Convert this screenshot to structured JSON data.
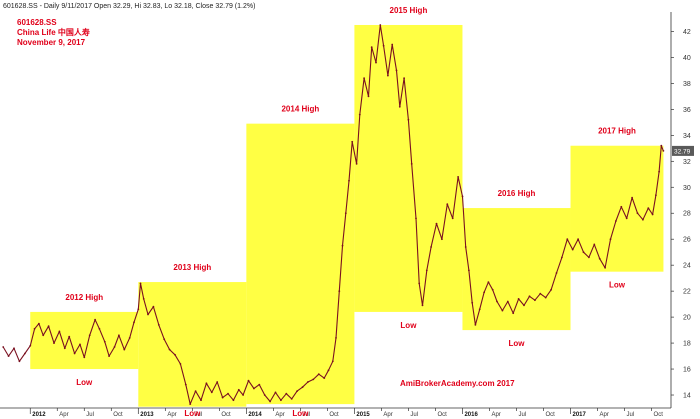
{
  "header": {
    "info_line": "601628.SS - Daily 9/11/2017 Open 32.29, Hi 32.83, Lo 32.18, Close 32.79 (1.2%)",
    "ticker": "601628.SS",
    "company": "China Life 中国人寿",
    "date": "November 9, 2017"
  },
  "watermark": "AmiBrokerAcademy.com 2017",
  "last_price_label": "32.79",
  "colors": {
    "box": "#ffff44",
    "price": "#7a1020",
    "label": "#e0001a",
    "last_price_bg": "#5a5a5a"
  },
  "chart_data": {
    "type": "line",
    "title": "",
    "xlabel": "",
    "ylabel": "",
    "x_unit": "year (decimal)",
    "xlim": [
      2011.72,
      2017.93
    ],
    "ylim": [
      13,
      43.5
    ],
    "y_axis_side": "right",
    "y_ticks": [
      14,
      16,
      18,
      20,
      22,
      24,
      26,
      28,
      30,
      32,
      34,
      36,
      38,
      40,
      42
    ],
    "x_ticks": [
      {
        "x": 2012.0,
        "label": "2012",
        "major": true
      },
      {
        "x": 2012.25,
        "label": "Apr",
        "major": false
      },
      {
        "x": 2012.5,
        "label": "Jul",
        "major": false
      },
      {
        "x": 2012.75,
        "label": "Oct",
        "major": false
      },
      {
        "x": 2013.0,
        "label": "2013",
        "major": true
      },
      {
        "x": 2013.25,
        "label": "Apr",
        "major": false
      },
      {
        "x": 2013.5,
        "label": "Jul",
        "major": false
      },
      {
        "x": 2013.75,
        "label": "Oct",
        "major": false
      },
      {
        "x": 2014.0,
        "label": "2014",
        "major": true
      },
      {
        "x": 2014.25,
        "label": "Apr",
        "major": false
      },
      {
        "x": 2014.5,
        "label": "Jul",
        "major": false
      },
      {
        "x": 2014.75,
        "label": "Oct",
        "major": false
      },
      {
        "x": 2015.0,
        "label": "2015",
        "major": true
      },
      {
        "x": 2015.25,
        "label": "Apr",
        "major": false
      },
      {
        "x": 2015.5,
        "label": "Jul",
        "major": false
      },
      {
        "x": 2015.75,
        "label": "Oct",
        "major": false
      },
      {
        "x": 2016.0,
        "label": "2016",
        "major": true
      },
      {
        "x": 2016.25,
        "label": "Apr",
        "major": false
      },
      {
        "x": 2016.5,
        "label": "Jul",
        "major": false
      },
      {
        "x": 2016.75,
        "label": "Oct",
        "major": false
      },
      {
        "x": 2017.0,
        "label": "2017",
        "major": true
      },
      {
        "x": 2017.25,
        "label": "Apr",
        "major": false
      },
      {
        "x": 2017.5,
        "label": "Jul",
        "major": false
      },
      {
        "x": 2017.75,
        "label": "Oct",
        "major": false
      }
    ],
    "grid": false,
    "boxes": [
      {
        "year": "2012",
        "x0": 2012.0,
        "x1": 2013.0,
        "low": 16.0,
        "high": 20.4,
        "high_label": "2012 High",
        "low_label": "Low"
      },
      {
        "year": "2013",
        "x0": 2013.0,
        "x1": 2014.0,
        "low": 13.1,
        "high": 22.7,
        "high_label": "2013 High",
        "low_label": "Low"
      },
      {
        "year": "2014",
        "x0": 2014.0,
        "x1": 2015.0,
        "low": 13.3,
        "high": 34.9,
        "high_label": "2014 High",
        "low_label": "Low"
      },
      {
        "year": "2015",
        "x0": 2015.0,
        "x1": 2016.0,
        "low": 20.4,
        "high": 42.5,
        "high_label": "2015 High",
        "low_label": "Low"
      },
      {
        "year": "2016",
        "x0": 2016.0,
        "x1": 2017.0,
        "low": 19.0,
        "high": 28.4,
        "high_label": "2016 High",
        "low_label": "Low"
      },
      {
        "year": "2017",
        "x0": 2017.0,
        "x1": 2017.86,
        "low": 23.5,
        "high": 33.2,
        "high_label": "2017 High",
        "low_label": "Low"
      }
    ],
    "series": [
      {
        "values": [
          [
            2011.75,
            17.7
          ],
          [
            2011.8,
            17.0
          ],
          [
            2011.85,
            17.6
          ],
          [
            2011.9,
            16.6
          ],
          [
            2011.95,
            17.2
          ],
          [
            2012.0,
            17.8
          ],
          [
            2012.04,
            19.1
          ],
          [
            2012.08,
            19.5
          ],
          [
            2012.12,
            18.6
          ],
          [
            2012.17,
            19.3
          ],
          [
            2012.22,
            18.0
          ],
          [
            2012.27,
            18.9
          ],
          [
            2012.32,
            17.6
          ],
          [
            2012.36,
            18.5
          ],
          [
            2012.41,
            17.2
          ],
          [
            2012.46,
            17.9
          ],
          [
            2012.5,
            16.9
          ],
          [
            2012.55,
            18.6
          ],
          [
            2012.6,
            19.8
          ],
          [
            2012.64,
            19.1
          ],
          [
            2012.69,
            18.1
          ],
          [
            2012.73,
            17.0
          ],
          [
            2012.78,
            17.7
          ],
          [
            2012.82,
            18.6
          ],
          [
            2012.87,
            17.5
          ],
          [
            2012.92,
            18.4
          ],
          [
            2012.96,
            19.6
          ],
          [
            2013.0,
            20.6
          ],
          [
            2013.02,
            22.6
          ],
          [
            2013.05,
            21.4
          ],
          [
            2013.09,
            20.2
          ],
          [
            2013.14,
            20.8
          ],
          [
            2013.19,
            19.4
          ],
          [
            2013.24,
            18.3
          ],
          [
            2013.29,
            17.5
          ],
          [
            2013.34,
            17.1
          ],
          [
            2013.39,
            16.4
          ],
          [
            2013.44,
            14.8
          ],
          [
            2013.48,
            13.3
          ],
          [
            2013.53,
            14.3
          ],
          [
            2013.58,
            13.6
          ],
          [
            2013.63,
            14.9
          ],
          [
            2013.68,
            14.2
          ],
          [
            2013.73,
            15.0
          ],
          [
            2013.78,
            13.8
          ],
          [
            2013.83,
            14.1
          ],
          [
            2013.88,
            13.6
          ],
          [
            2013.93,
            14.4
          ],
          [
            2013.97,
            14.0
          ],
          [
            2014.02,
            15.1
          ],
          [
            2014.07,
            14.5
          ],
          [
            2014.12,
            14.8
          ],
          [
            2014.17,
            14.0
          ],
          [
            2014.22,
            13.5
          ],
          [
            2014.27,
            14.2
          ],
          [
            2014.32,
            13.6
          ],
          [
            2014.37,
            14.1
          ],
          [
            2014.42,
            13.7
          ],
          [
            2014.47,
            14.3
          ],
          [
            2014.52,
            14.6
          ],
          [
            2014.57,
            15.0
          ],
          [
            2014.62,
            15.2
          ],
          [
            2014.67,
            15.6
          ],
          [
            2014.72,
            15.3
          ],
          [
            2014.76,
            15.9
          ],
          [
            2014.8,
            16.6
          ],
          [
            2014.83,
            18.4
          ],
          [
            2014.86,
            22.0
          ],
          [
            2014.89,
            25.5
          ],
          [
            2014.92,
            28.0
          ],
          [
            2014.95,
            30.5
          ],
          [
            2014.98,
            33.5
          ],
          [
            2015.02,
            31.8
          ],
          [
            2015.05,
            35.6
          ],
          [
            2015.09,
            38.4
          ],
          [
            2015.13,
            37.0
          ],
          [
            2015.16,
            40.8
          ],
          [
            2015.2,
            39.6
          ],
          [
            2015.24,
            42.5
          ],
          [
            2015.27,
            40.9
          ],
          [
            2015.31,
            38.6
          ],
          [
            2015.35,
            41.0
          ],
          [
            2015.39,
            39.0
          ],
          [
            2015.42,
            36.2
          ],
          [
            2015.46,
            38.4
          ],
          [
            2015.5,
            35.2
          ],
          [
            2015.53,
            31.8
          ],
          [
            2015.57,
            27.6
          ],
          [
            2015.6,
            22.6
          ],
          [
            2015.63,
            20.9
          ],
          [
            2015.67,
            23.6
          ],
          [
            2015.71,
            25.4
          ],
          [
            2015.76,
            27.2
          ],
          [
            2015.81,
            26.0
          ],
          [
            2015.86,
            28.7
          ],
          [
            2015.91,
            27.6
          ],
          [
            2015.96,
            30.8
          ],
          [
            2016.0,
            29.3
          ],
          [
            2016.03,
            25.4
          ],
          [
            2016.06,
            23.6
          ],
          [
            2016.09,
            21.1
          ],
          [
            2016.12,
            19.4
          ],
          [
            2016.16,
            20.6
          ],
          [
            2016.2,
            21.9
          ],
          [
            2016.24,
            22.7
          ],
          [
            2016.28,
            22.1
          ],
          [
            2016.32,
            21.2
          ],
          [
            2016.37,
            20.5
          ],
          [
            2016.42,
            21.2
          ],
          [
            2016.47,
            20.3
          ],
          [
            2016.52,
            21.4
          ],
          [
            2016.57,
            20.9
          ],
          [
            2016.62,
            21.6
          ],
          [
            2016.67,
            21.3
          ],
          [
            2016.72,
            21.8
          ],
          [
            2016.77,
            21.5
          ],
          [
            2016.82,
            22.1
          ],
          [
            2016.87,
            23.4
          ],
          [
            2016.92,
            24.6
          ],
          [
            2016.97,
            26.0
          ],
          [
            2017.02,
            25.2
          ],
          [
            2017.07,
            26.0
          ],
          [
            2017.12,
            25.0
          ],
          [
            2017.17,
            24.6
          ],
          [
            2017.22,
            25.6
          ],
          [
            2017.27,
            24.5
          ],
          [
            2017.32,
            23.8
          ],
          [
            2017.37,
            26.0
          ],
          [
            2017.42,
            27.4
          ],
          [
            2017.47,
            28.5
          ],
          [
            2017.52,
            27.6
          ],
          [
            2017.57,
            29.2
          ],
          [
            2017.62,
            28.0
          ],
          [
            2017.67,
            27.5
          ],
          [
            2017.72,
            28.4
          ],
          [
            2017.76,
            27.9
          ],
          [
            2017.79,
            29.4
          ],
          [
            2017.82,
            31.2
          ],
          [
            2017.84,
            33.2
          ],
          [
            2017.86,
            32.8
          ]
        ]
      }
    ]
  }
}
